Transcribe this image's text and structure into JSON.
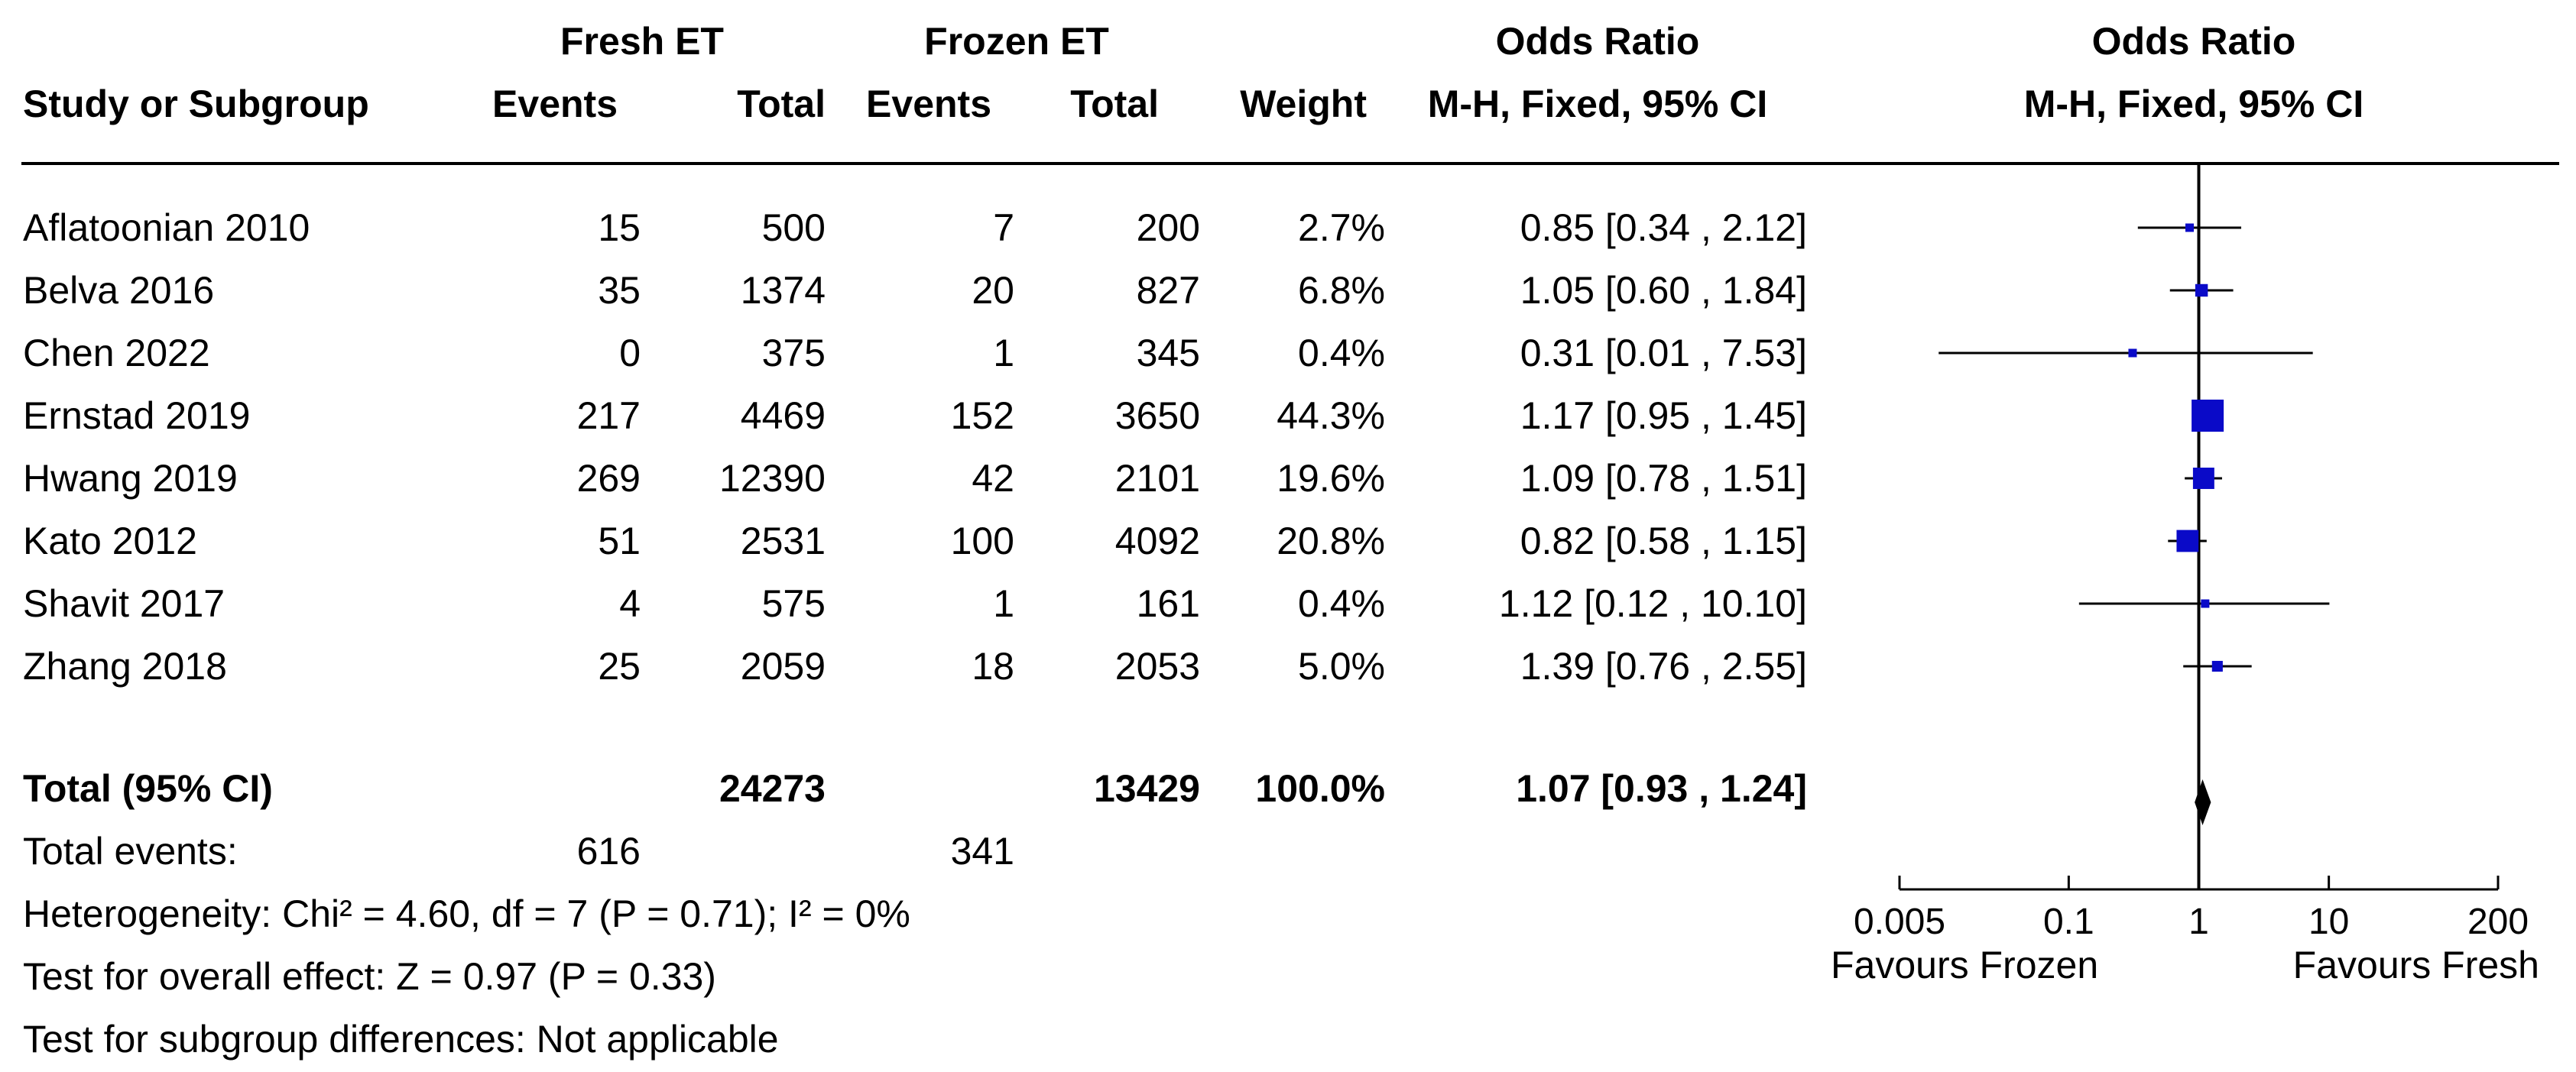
{
  "headers": {
    "group1": "Fresh ET",
    "group2": "Frozen ET",
    "or_col_title": "Odds Ratio",
    "or_col_method": "M-H, Fixed, 95% CI",
    "plot_title": "Odds Ratio",
    "plot_method": "M-H, Fixed, 95% CI",
    "study": "Study or Subgroup",
    "events1": "Events",
    "total1": "Total",
    "events2": "Events",
    "total2": "Total",
    "weight": "Weight"
  },
  "studies": [
    {
      "name": "Aflatoonian 2010",
      "events1": "15",
      "total1": "500",
      "events2": "7",
      "total2": "200",
      "weight": "2.7%",
      "or_text": "0.85 [0.34 , 2.12]"
    },
    {
      "name": "Belva 2016",
      "events1": "35",
      "total1": "1374",
      "events2": "20",
      "total2": "827",
      "weight": "6.8%",
      "or_text": "1.05 [0.60 , 1.84]"
    },
    {
      "name": "Chen 2022",
      "events1": "0",
      "total1": "375",
      "events2": "1",
      "total2": "345",
      "weight": "0.4%",
      "or_text": "0.31 [0.01 , 7.53]"
    },
    {
      "name": "Ernstad 2019",
      "events1": "217",
      "total1": "4469",
      "events2": "152",
      "total2": "3650",
      "weight": "44.3%",
      "or_text": "1.17 [0.95 , 1.45]"
    },
    {
      "name": "Hwang 2019",
      "events1": "269",
      "total1": "12390",
      "events2": "42",
      "total2": "2101",
      "weight": "19.6%",
      "or_text": "1.09 [0.78 , 1.51]"
    },
    {
      "name": "Kato 2012",
      "events1": "51",
      "total1": "2531",
      "events2": "100",
      "total2": "4092",
      "weight": "20.8%",
      "or_text": "0.82 [0.58 , 1.15]"
    },
    {
      "name": "Shavit 2017",
      "events1": "4",
      "total1": "575",
      "events2": "1",
      "total2": "161",
      "weight": "0.4%",
      "or_text": "1.12 [0.12 , 10.10]"
    },
    {
      "name": "Zhang 2018",
      "events1": "25",
      "total1": "2059",
      "events2": "18",
      "total2": "2053",
      "weight": "5.0%",
      "or_text": "1.39 [0.76 , 2.55]"
    }
  ],
  "total": {
    "label": "Total (95% CI)",
    "total1": "24273",
    "total2": "13429",
    "weight": "100.0%",
    "or_text": "1.07 [0.93 , 1.24]"
  },
  "events_row": {
    "label": "Total events:",
    "events1": "616",
    "events2": "341"
  },
  "footer": {
    "heterogeneity": "Heterogeneity: Chi² = 4.60, df = 7 (P = 0.71); I² = 0%",
    "overall": "Test for overall effect: Z = 0.97 (P = 0.33)",
    "subgroup": "Test for subgroup differences: Not applicable"
  },
  "colors": {
    "marker": "#0a0ac8",
    "line": "#000000"
  },
  "chart_data": {
    "type": "forest",
    "scale": "log",
    "xlim": [
      0.005,
      200
    ],
    "ticks": [
      "0.005",
      "0.1",
      "1",
      "10",
      "200"
    ],
    "tick_values": [
      0.005,
      0.1,
      1,
      10,
      200
    ],
    "favours_left": "Favours Frozen",
    "favours_right": "Favours Fresh",
    "points": [
      {
        "or": 0.85,
        "lo": 0.34,
        "hi": 2.12,
        "weight": 2.7
      },
      {
        "or": 1.05,
        "lo": 0.6,
        "hi": 1.84,
        "weight": 6.8
      },
      {
        "or": 0.31,
        "lo": 0.01,
        "hi": 7.53,
        "weight": 0.4
      },
      {
        "or": 1.17,
        "lo": 0.95,
        "hi": 1.45,
        "weight": 44.3
      },
      {
        "or": 1.09,
        "lo": 0.78,
        "hi": 1.51,
        "weight": 19.6
      },
      {
        "or": 0.82,
        "lo": 0.58,
        "hi": 1.15,
        "weight": 20.8
      },
      {
        "or": 1.12,
        "lo": 0.12,
        "hi": 10.1,
        "weight": 0.4
      },
      {
        "or": 1.39,
        "lo": 0.76,
        "hi": 2.55,
        "weight": 5.0
      }
    ],
    "pooled": {
      "or": 1.07,
      "lo": 0.93,
      "hi": 1.24
    }
  }
}
